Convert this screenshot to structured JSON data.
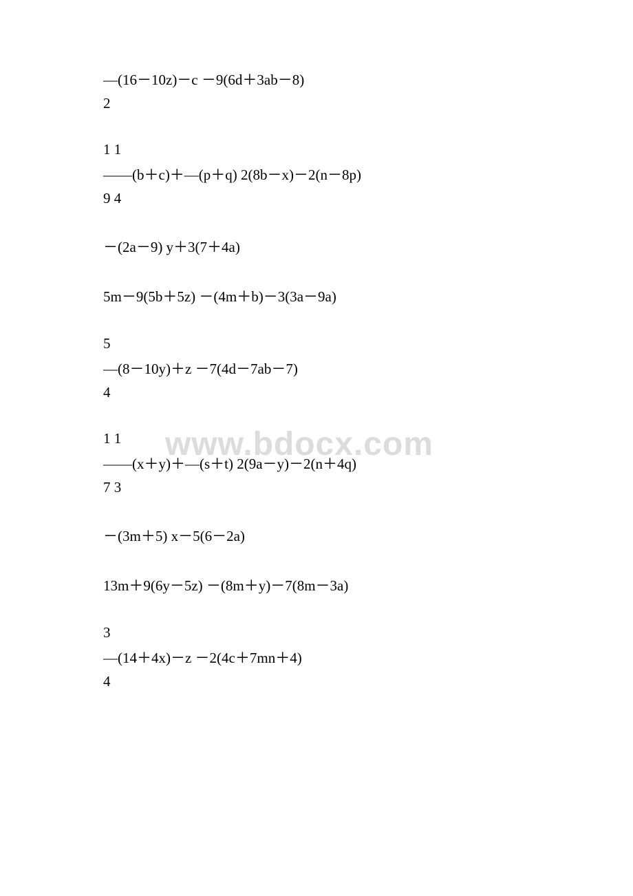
{
  "watermark": "www.bdocx.com",
  "colors": {
    "text": "#000000",
    "background": "#ffffff",
    "watermark": "#dcdcdc"
  },
  "fontsize": 21,
  "watermark_fontsize": 48,
  "groups": [
    {
      "lines": [
        "—(16－10z)－c    －9(6d＋3ab－8)",
        "2"
      ]
    },
    {
      "lines": [
        " 1 1",
        "——(b＋c)＋—(p＋q)    2(8b－x)－2(n－8p)",
        " 9 4"
      ]
    },
    {
      "lines": [
        "－(2a－9)    y＋3(7＋4a)"
      ]
    },
    {
      "lines": [
        "5m－9(5b＋5z)    －(4m＋b)－3(3a－9a)"
      ]
    },
    {
      "lines": [
        "5",
        "—(8－10y)＋z    －7(4d－7ab－7)",
        "4"
      ]
    },
    {
      "lines": [
        " 1 1",
        "——(x＋y)＋—(s＋t)    2(9a－y)－2(n＋4q)",
        " 7 3"
      ]
    },
    {
      "lines": [
        "－(3m＋5)    x－5(6－2a)"
      ]
    },
    {
      "lines": [
        "13m＋9(6y－5z)    －(8m＋y)－7(8m－3a)"
      ]
    },
    {
      "lines": [
        "3",
        "—(14＋4x)－z    －2(4c＋7mn＋4)",
        "4"
      ]
    }
  ]
}
